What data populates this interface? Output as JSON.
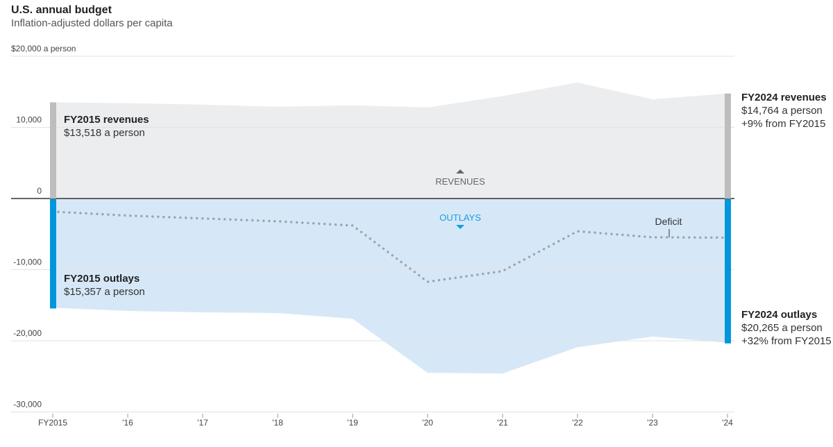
{
  "title": "U.S. annual budget",
  "subtitle": "Inflation-adjusted dollars per capita",
  "chart_data": {
    "type": "area",
    "title": "U.S. annual budget",
    "subtitle": "Inflation-adjusted dollars per capita",
    "x": [
      "FY2015",
      "'16",
      "'17",
      "'18",
      "'19",
      "'20",
      "'21",
      "'22",
      "'23",
      "'24"
    ],
    "series": [
      {
        "name": "Revenues",
        "values": [
          13518,
          13400,
          13200,
          12900,
          13100,
          12800,
          14400,
          16300,
          13950,
          14764
        ]
      },
      {
        "name": "Outlays",
        "values": [
          15357,
          15800,
          16000,
          16100,
          16900,
          24500,
          24600,
          20900,
          19400,
          20265
        ]
      }
    ],
    "ylim": [
      -30000,
      20000
    ],
    "yticks": [
      {
        "value": 20000,
        "label": "$20,000 a person"
      },
      {
        "value": 10000,
        "label": "10,000"
      },
      {
        "value": 0,
        "label": "0"
      },
      {
        "value": -10000,
        "label": "-10,000"
      },
      {
        "value": -20000,
        "label": "-20,000"
      },
      {
        "value": -30000,
        "label": "-30,000"
      }
    ],
    "labels": {
      "revenues": "REVENUES",
      "outlays": "OUTLAYS",
      "deficit": "Deficit"
    },
    "grid": true
  },
  "annotations": {
    "fy2015_revenues": {
      "title": "FY2015 revenues",
      "value": "$13,518 a person"
    },
    "fy2015_outlays": {
      "title": "FY2015 outlays",
      "value": "$15,357 a person"
    },
    "fy2024_revenues": {
      "title": "FY2024 revenues",
      "value": "$14,764 a person",
      "change": "+9% from FY2015"
    },
    "fy2024_outlays": {
      "title": "FY2024 outlays",
      "value": "$20,265 a person",
      "change": "+32% from FY2015"
    }
  },
  "colors": {
    "revenue_fill": "#ecedef",
    "revenue_bar": "#bdbdbd",
    "outlay_fill": "#d6e8f7",
    "outlay_bar": "#0096db",
    "deficit": "#9aa5ae",
    "outlay_label": "#1a9be0"
  }
}
